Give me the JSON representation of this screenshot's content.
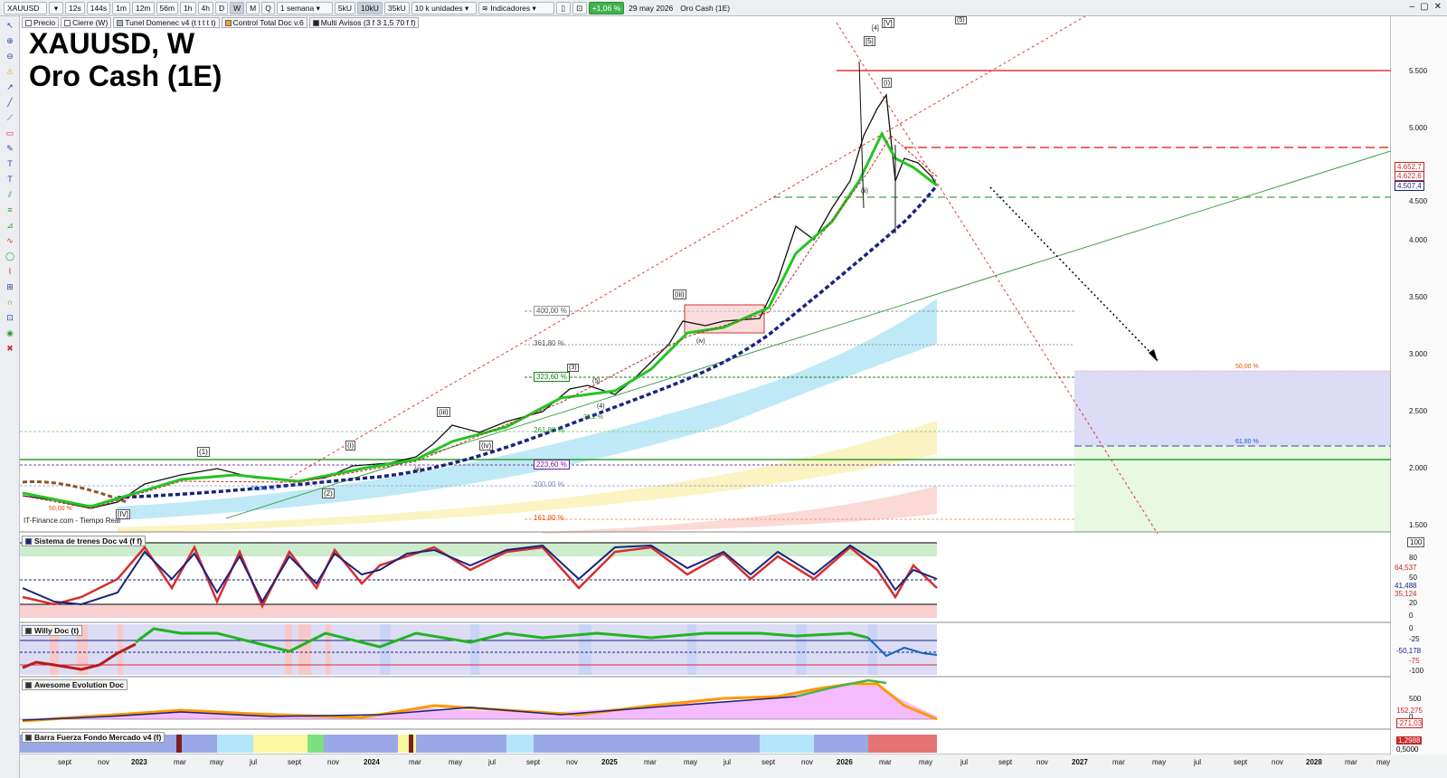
{
  "toolbar": {
    "symbol": "XAUUSD",
    "intervals": [
      "12s",
      "144s",
      "1m",
      "12m",
      "56m",
      "1h",
      "4h",
      "D",
      "W",
      "M",
      "Q"
    ],
    "active_interval": "W",
    "period_select": "1 semana",
    "units": [
      "5kU",
      "10kU",
      "35kU"
    ],
    "active_unit": "10kU",
    "volume_select": "10 k unidades",
    "indicators_label": "Indicadores",
    "change": "+1,06 %",
    "date": "29 may 2026",
    "instrument_name": "Oro Cash (1E)"
  },
  "studies": [
    {
      "label": "Precio",
      "color": "#ffffff"
    },
    {
      "label": "Cierre (W)",
      "color": "#ffffff"
    },
    {
      "label": "Tunel Domenec v4 (t t t t t)",
      "color": "#aab4c4"
    },
    {
      "label": "Control Total Doc v.6",
      "color": "#f0a020"
    },
    {
      "label": "Multi Avisos (3 f 3 1,5 70 f f)",
      "color": "#222222"
    }
  ],
  "title": {
    "line1": "XAUUSD, W",
    "line2": "Oro Cash (1E)"
  },
  "source": "IT-Finance.com - Tiempo Real",
  "price_axis": {
    "ticks": [
      "5.500",
      "5.000",
      "4.500",
      "4.000",
      "3.500",
      "3.000",
      "2.500",
      "2.000",
      "1.500"
    ],
    "badges": [
      {
        "text": "4.652,7",
        "color": "#c62828"
      },
      {
        "text": "4.622,6",
        "color": "#c62828"
      },
      {
        "text": "4.507,4",
        "color": "#1a237e"
      }
    ]
  },
  "fib_labels": [
    {
      "text": "400,00 %",
      "color": "#555555"
    },
    {
      "text": "361,80 %",
      "color": "#555555"
    },
    {
      "text": "323,60 %",
      "color": "#1b7d1b"
    },
    {
      "text": "261,80 %",
      "color": "#2e9d2e"
    },
    {
      "text": "223,60 %",
      "color": "#6a1b9a"
    },
    {
      "text": "200,00 %",
      "color": "#7a8cc0"
    },
    {
      "text": "161,80 %",
      "color": "#e65100"
    },
    {
      "text": "61,80 %",
      "color": "#1565c0"
    },
    {
      "text": "50,00 %",
      "color": "#e65100"
    },
    {
      "text": "50,00 %",
      "color": "#e65100"
    },
    {
      "text": "61,80 %",
      "color": "#1565c0"
    },
    {
      "text": "38,2 %",
      "color": "#2e7d32"
    }
  ],
  "wave_labels": [
    "[IV]",
    "(1)",
    "(2)",
    "(i)",
    "(ii)",
    "(iii)",
    "(iv)",
    "(3)",
    "(4)",
    "(5)",
    "(iii)",
    "(iv)",
    "(i)",
    "(ii)",
    "[V]",
    "[5]",
    "[4]",
    "(5)"
  ],
  "panels": [
    {
      "title": "Sistema de trenes Doc v4 (f f)",
      "ticks": [
        "100",
        "80",
        "50",
        "20",
        "0"
      ],
      "badges": [
        {
          "text": "64,537",
          "color": "#c62828"
        },
        {
          "text": "41,488",
          "color": "#1a237e"
        },
        {
          "text": "35,124",
          "color": "#c62828"
        }
      ]
    },
    {
      "title": "Willy Doc (t)",
      "ticks": [
        "0",
        "-25",
        "-50",
        "-75",
        "-100"
      ],
      "badges": [
        {
          "text": "-50,178",
          "color": "#1a237e"
        }
      ]
    },
    {
      "title": "Awesome Evolution Doc",
      "ticks": [
        "500",
        "0"
      ],
      "badges": [
        {
          "text": "152,275",
          "color": "#c62828"
        },
        {
          "text": "-271,03",
          "color": "#c62828"
        }
      ]
    },
    {
      "title": "Barra Fuerza Fondo Mercado v4 (f)",
      "ticks": [],
      "badges": [
        {
          "text": "1,2988",
          "color": "#c62828"
        },
        {
          "text": "0,5000",
          "color": "#000000"
        }
      ]
    }
  ],
  "time_axis": [
    "sept",
    "nov",
    "2023",
    "mar",
    "may",
    "jul",
    "sept",
    "nov",
    "2024",
    "mar",
    "may",
    "jul",
    "sept",
    "nov",
    "2025",
    "mar",
    "may",
    "jul",
    "sept",
    "nov",
    "2026",
    "mar",
    "may",
    "jul",
    "sept",
    "nov",
    "2027",
    "mar",
    "may",
    "jul",
    "sept",
    "nov",
    "2028",
    "mar",
    "may"
  ],
  "left_tools": [
    "cursor-icon",
    "zoom-icon",
    "zoom-out-icon",
    "alert-icon",
    "arrow-icon",
    "trendline-icon",
    "ray-icon",
    "rect-icon",
    "pen-icon",
    "text-icon",
    "label-icon",
    "channel-icon",
    "fib-icon",
    "gann-icon",
    "wave-icon",
    "shape-icon",
    "brush-icon",
    "ruler-icon",
    "magnet-icon",
    "lock-icon",
    "eye-icon",
    "trash-icon"
  ]
}
